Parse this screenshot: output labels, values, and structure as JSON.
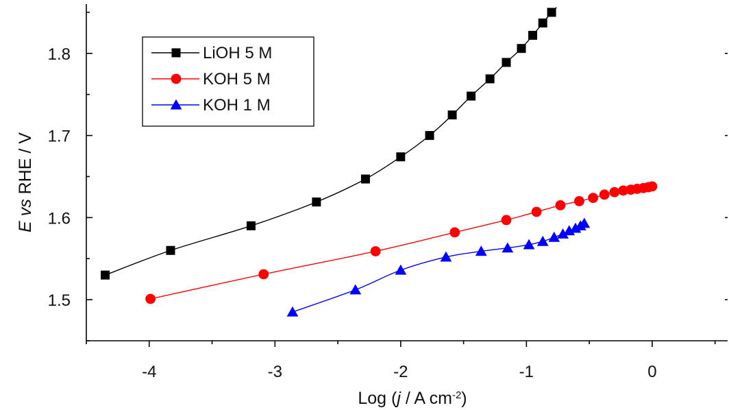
{
  "chart_data": {
    "type": "line",
    "title": "",
    "xlabel": {
      "prefix": "Log (",
      "italic": "j",
      "mid": " / A cm",
      "sup": "-2",
      "suffix": ")"
    },
    "ylabel": {
      "italic_e": "E",
      "space1": " ",
      "italic_vs": "vs",
      "rest": " RHE / V"
    },
    "xlim": [
      -4.5,
      0.6
    ],
    "ylim": [
      1.45,
      1.86
    ],
    "xticks": [
      -4,
      -3,
      -2,
      -1,
      0
    ],
    "xtick_labels": [
      "-4",
      "-3",
      "-2",
      "-1",
      "0"
    ],
    "yticks": [
      1.5,
      1.6,
      1.7,
      1.8
    ],
    "ytick_labels": [
      "1.5",
      "1.6",
      "1.7",
      "1.8"
    ],
    "legend_position": "top-left",
    "grid": false,
    "series": [
      {
        "name": "LiOH 5 M",
        "color": "#000000",
        "marker": "square",
        "x": [
          -4.35,
          -3.83,
          -3.19,
          -2.67,
          -2.28,
          -2.0,
          -1.77,
          -1.59,
          -1.44,
          -1.29,
          -1.16,
          -1.04,
          -0.95,
          -0.87,
          -0.8
        ],
        "y": [
          1.53,
          1.56,
          1.59,
          1.619,
          1.647,
          1.674,
          1.7,
          1.725,
          1.748,
          1.769,
          1.789,
          1.806,
          1.822,
          1.837,
          1.85
        ],
        "curve_end": {
          "x": -0.76,
          "y": 1.856
        }
      },
      {
        "name": "KOH 5 M",
        "color": "#ff0000",
        "marker": "circle",
        "x": [
          -3.99,
          -3.09,
          -2.2,
          -1.57,
          -1.16,
          -0.92,
          -0.73,
          -0.58,
          -0.47,
          -0.38,
          -0.3,
          -0.23,
          -0.17,
          -0.12,
          -0.07,
          -0.03,
          0.0
        ],
        "y": [
          1.501,
          1.531,
          1.559,
          1.582,
          1.597,
          1.607,
          1.615,
          1.62,
          1.624,
          1.628,
          1.631,
          1.633,
          1.634,
          1.635,
          1.636,
          1.637,
          1.638
        ]
      },
      {
        "name": "KOH 1 M",
        "color": "#0000ff",
        "marker": "triangle",
        "x": [
          -2.86,
          -2.36,
          -2.0,
          -1.64,
          -1.36,
          -1.15,
          -0.98,
          -0.87,
          -0.78,
          -0.71,
          -0.66,
          -0.61,
          -0.57,
          -0.54
        ],
        "y": [
          1.485,
          1.512,
          1.536,
          1.552,
          1.559,
          1.563,
          1.567,
          1.571,
          1.576,
          1.58,
          1.584,
          1.587,
          1.59,
          1.593
        ]
      }
    ]
  }
}
